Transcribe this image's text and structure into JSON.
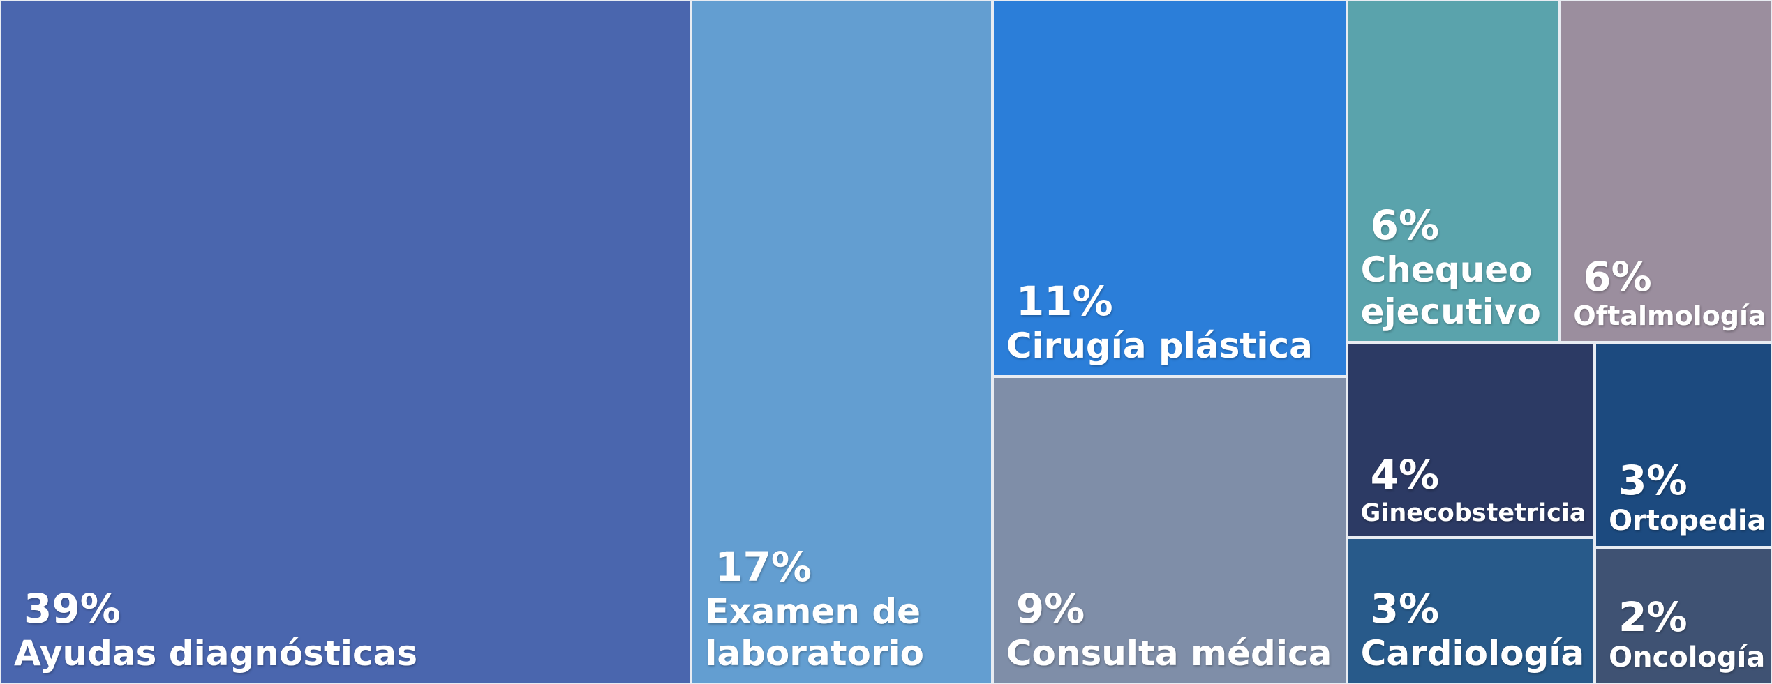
{
  "chart_data": {
    "type": "treemap",
    "categories": [
      "Ayudas diagnósticas",
      "Examen de laboratorio",
      "Cirugía plástica",
      "Consulta médica",
      "Chequeo ejecutivo",
      "Oftalmología",
      "Ginecobstetricia",
      "Cardiología",
      "Ortopedia",
      "Oncología"
    ],
    "values": [
      39,
      17,
      11,
      9,
      6,
      6,
      4,
      3,
      3,
      2
    ],
    "value_labels": [
      "39%",
      "17%",
      "11%",
      "9%",
      "6%",
      "6%",
      "4%",
      "3%",
      "3%",
      "2%"
    ],
    "colors": [
      "#4a66ae",
      "#639ed1",
      "#2b7ed9",
      "#7f8ea8",
      "#5aa3ac",
      "#9b8e9e",
      "#2c3a64",
      "#285a8a",
      "#1c4a7f",
      "#3f5273"
    ]
  }
}
